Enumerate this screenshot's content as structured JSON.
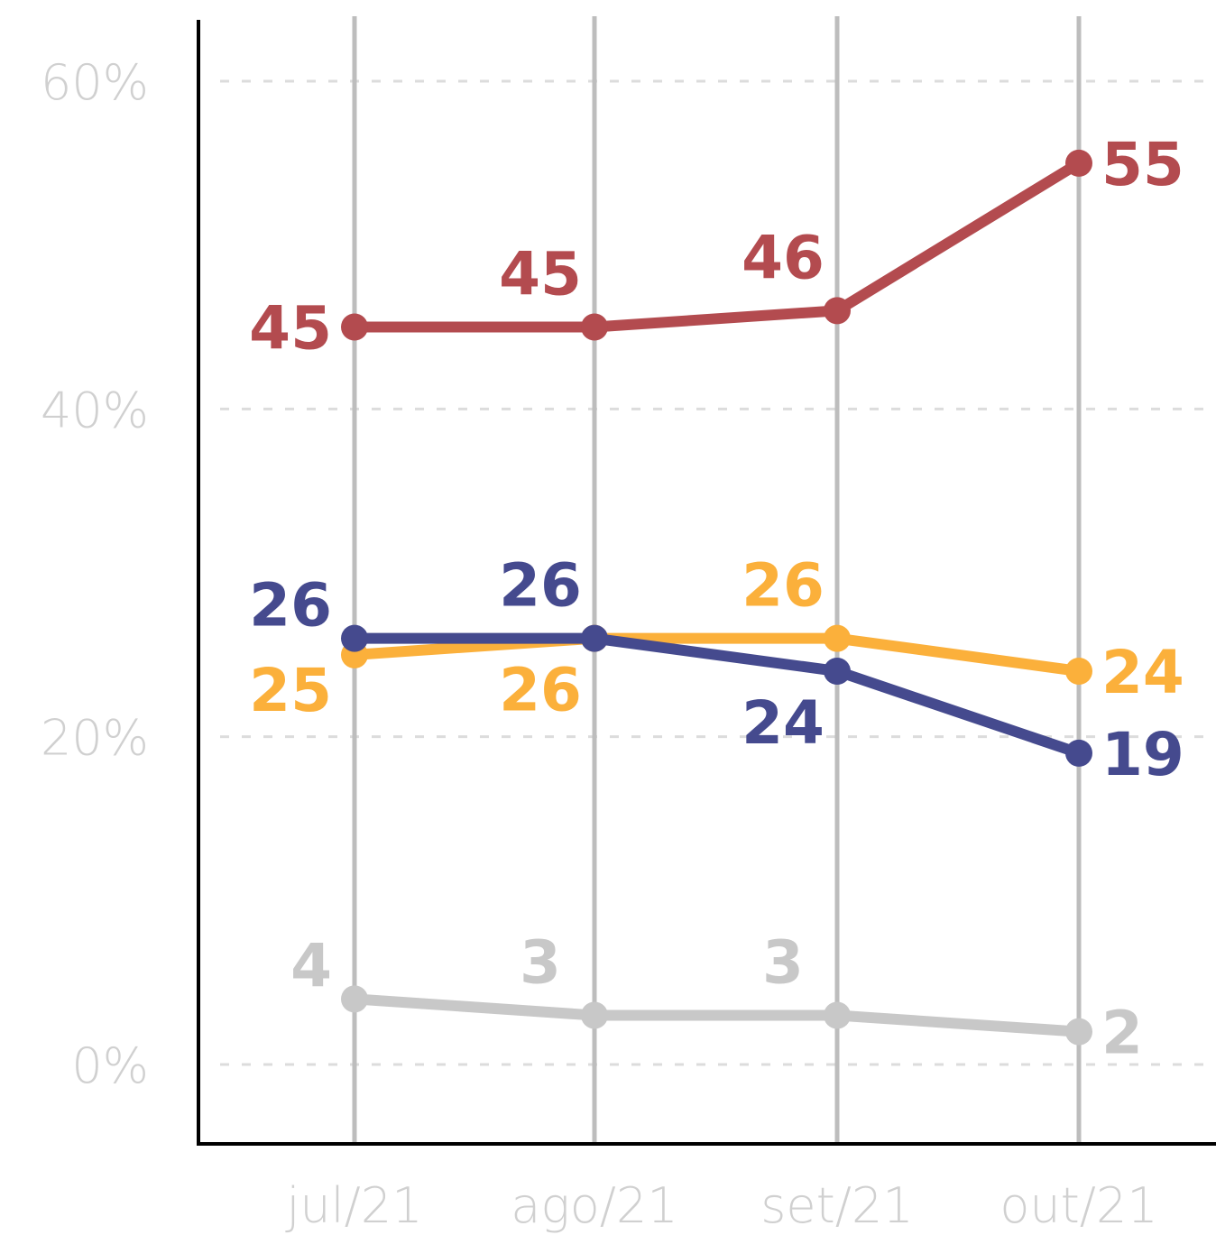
{
  "chart_data": {
    "type": "line",
    "categories": [
      "jul/21",
      "ago/21",
      "set/21",
      "out/21"
    ],
    "y_ticks": [
      "0%",
      "20%",
      "40%",
      "60%"
    ],
    "ylim": [
      0,
      60
    ],
    "grid": "dashed horizontal, solid vertical",
    "series": [
      {
        "id": "red",
        "color": "#b34b4f",
        "values": [
          45,
          45,
          46,
          55
        ],
        "labels": [
          "45",
          "45",
          "46",
          "55"
        ],
        "label_pos": [
          "left",
          "above",
          "above",
          "right"
        ]
      },
      {
        "id": "yellow",
        "color": "#fbb03b",
        "values": [
          25,
          26,
          26,
          24
        ],
        "labels": [
          "25",
          "26",
          "26",
          "24"
        ],
        "label_pos": [
          "below-left",
          "below",
          "above",
          "right"
        ]
      },
      {
        "id": "blue",
        "color": "#454a8e",
        "values": [
          26,
          26,
          24,
          19
        ],
        "labels": [
          "26",
          "26",
          "24",
          "19"
        ],
        "label_pos": [
          "above-left",
          "above",
          "below",
          "right"
        ]
      },
      {
        "id": "gray",
        "color": "#c8c8c8",
        "values": [
          4,
          3,
          3,
          2
        ],
        "labels": [
          "4",
          "3",
          "3",
          "2"
        ],
        "label_pos": [
          "above-left",
          "above",
          "above",
          "right"
        ]
      }
    ],
    "axis_color": "#000000",
    "tick_color": "#d0d0d0",
    "gridline_color": "#bdbdbd"
  }
}
